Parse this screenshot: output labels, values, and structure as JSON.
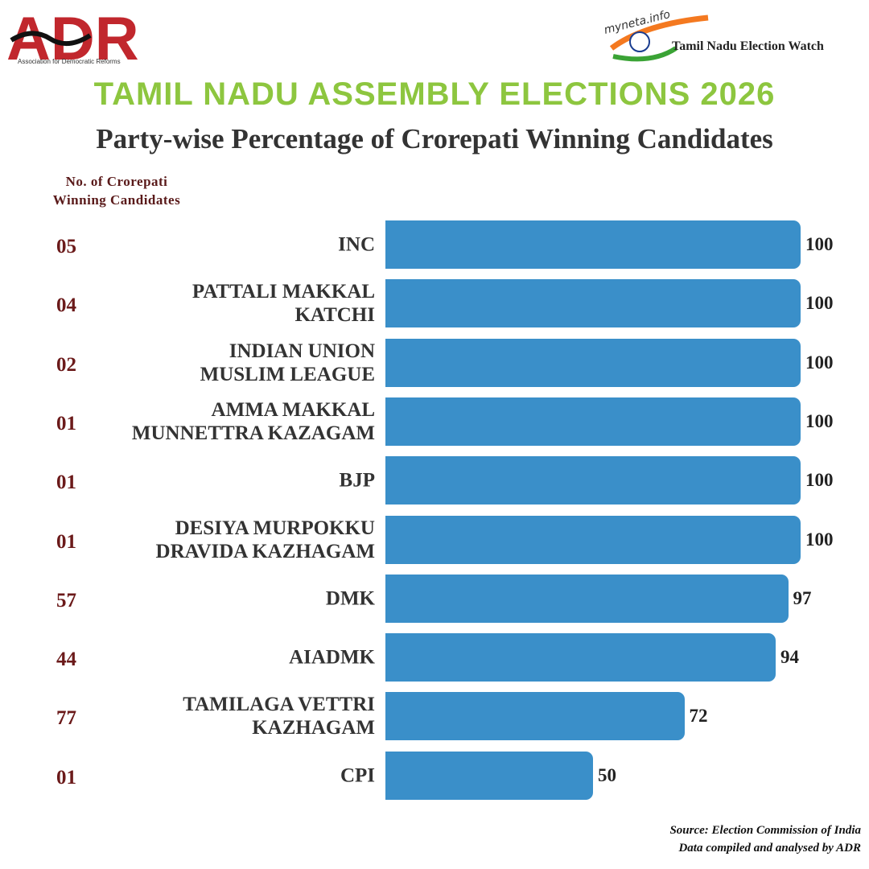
{
  "logos": {
    "adr": "ADR",
    "adr_tagline": "Association for Democratic Reforms",
    "myneta": "myneta.info",
    "watch": "Tamil Nadu Election Watch"
  },
  "chart_data": {
    "type": "bar",
    "orientation": "horizontal",
    "title": "TAMIL NADU ASSEMBLY ELECTIONS 2026",
    "subtitle": "Party-wise Percentage of Crorepati Winning Candidates",
    "count_header": "No. of Crorepati\nWinning Candidates",
    "categories": [
      "INC",
      "PATTALI MAKKAL\nKATCHI",
      "INDIAN UNION\nMUSLIM LEAGUE",
      "AMMA MAKKAL\nMUNNETTRA KAZAGAM",
      "BJP",
      "DESIYA MURPOKKU\nDRAVIDA KAZHAGAM",
      "DMK",
      "AIADMK",
      "TAMILAGA VETTRI\nKAZHAGAM",
      "CPI"
    ],
    "counts": [
      5,
      4,
      2,
      1,
      1,
      1,
      57,
      44,
      77,
      1
    ],
    "count_labels": [
      "05",
      "04",
      "02",
      "01",
      "01",
      "01",
      "57",
      "44",
      "77",
      "01"
    ],
    "values": [
      100,
      100,
      100,
      100,
      100,
      100,
      97,
      94,
      72,
      50
    ],
    "color": "#3a8fc9",
    "xlim": [
      0,
      100
    ],
    "source": [
      "Source: Election Commission of India",
      "Data compiled and analysed by ADR"
    ]
  }
}
